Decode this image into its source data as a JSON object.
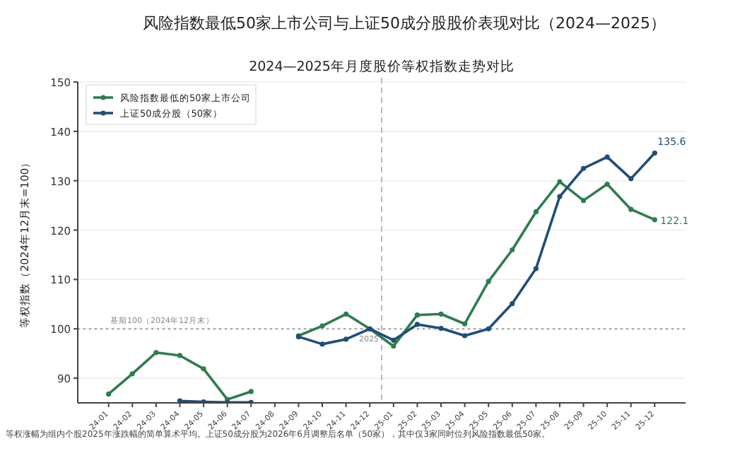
{
  "chart_data": {
    "type": "line",
    "title": "风险指数最低50家上市公司与上证50成分股股价表现对比（2024—2025）",
    "subtitle": "2024—2025年月度股价等权指数走势对比",
    "ylabel": "等权指数（2024年12月末=100）",
    "categories": [
      "24-01",
      "24-02",
      "24-03",
      "24-04",
      "24-05",
      "24-06",
      "24-07",
      "24-08",
      "24-09",
      "24-10",
      "24-11",
      "24-12",
      "25-01",
      "25-02",
      "25-03",
      "25-04",
      "25-05",
      "25-06",
      "25-07",
      "25-08",
      "25-09",
      "25-10",
      "25-11",
      "25-12"
    ],
    "series": [
      {
        "name": "风险指数最低的50家上市公司",
        "color": "#2e7d4f",
        "values": [
          86.8,
          90.9,
          95.2,
          94.6,
          91.9,
          85.7,
          87.3,
          null,
          98.6,
          100.6,
          103.0,
          100.0,
          96.5,
          102.8,
          103.0,
          101.0,
          109.6,
          116.0,
          123.7,
          129.8,
          126.0,
          129.3,
          124.2,
          122.1
        ]
      },
      {
        "name": "上证50成分股（50家）",
        "color": "#1f4e79",
        "values": [
          null,
          null,
          null,
          85.4,
          85.2,
          85.1,
          85.1,
          null,
          98.4,
          96.9,
          97.9,
          100.0,
          97.7,
          100.9,
          100.1,
          98.6,
          100.0,
          105.1,
          112.2,
          126.8,
          132.5,
          134.8,
          130.4,
          135.6
        ]
      }
    ],
    "ylim": [
      85,
      150
    ],
    "yticks": [
      90,
      100,
      110,
      120,
      130,
      140,
      150
    ],
    "grid": "y",
    "legend": "top left",
    "marker": "circle",
    "line_style": "solid",
    "ref_lines": [
      {
        "axis": "y",
        "value": 100,
        "label": "基期100（2024年12月末）",
        "color": "#aaaaaa",
        "line_style": "dotted"
      },
      {
        "axis": "x",
        "value": "25-01",
        "label": "2025",
        "color": "#bbbbbb",
        "line_style": "dashed"
      }
    ],
    "annotations": [
      {
        "text": "135.6",
        "x": "25-12",
        "y": 135.6
      },
      {
        "text": "122.1",
        "x": "25-12",
        "y": 122.1
      },
      "等权涨幅为组内个股2025年涨跌幅的简单算术平均。上证50成分股为2026年6月调整后名单（50家），其中仅3家同时位列风险指数最低50家。"
    ]
  }
}
